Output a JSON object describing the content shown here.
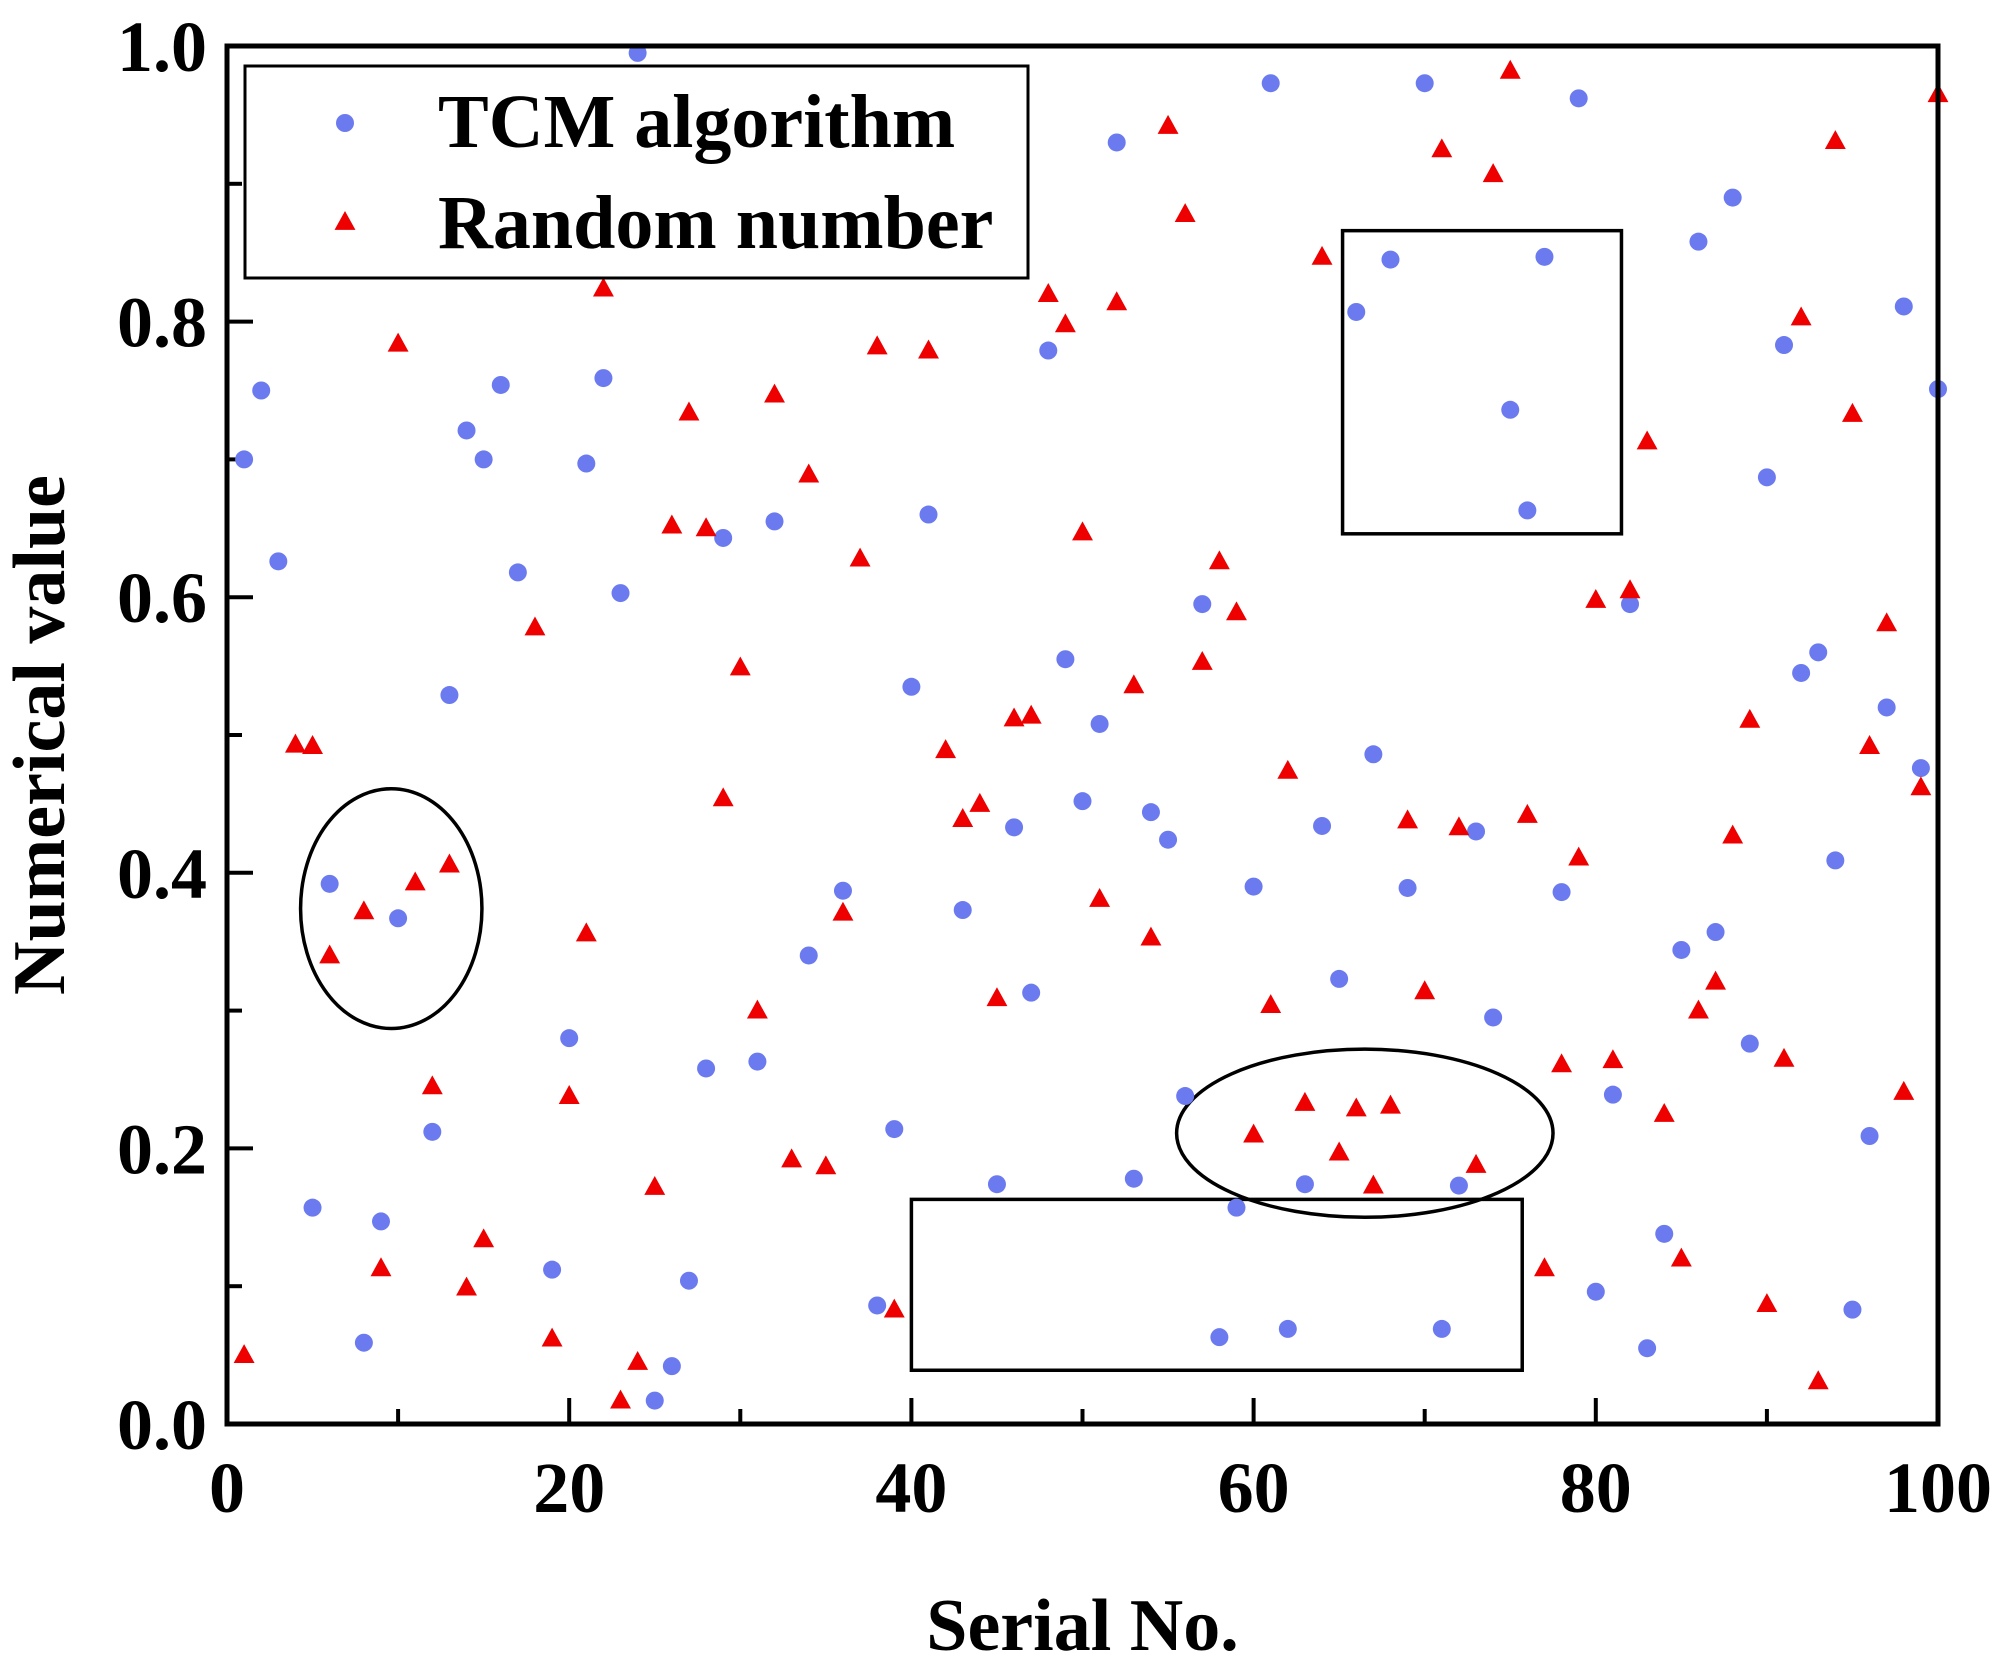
{
  "chart_data": {
    "type": "scatter",
    "title": "",
    "xlabel": "Serial No.",
    "ylabel": "Numerical value",
    "xlim": [
      0,
      100
    ],
    "ylim": [
      0,
      1.0
    ],
    "x_ticks": [
      0,
      20,
      40,
      60,
      80,
      100
    ],
    "x_tick_labels": [
      "0",
      "20",
      "40",
      "60",
      "80",
      "100"
    ],
    "y_ticks": [
      0.0,
      0.2,
      0.4,
      0.6,
      0.8,
      1.0
    ],
    "y_tick_labels": [
      "0.0",
      "0.2",
      "0.4",
      "0.6",
      "0.8",
      "1.0"
    ],
    "grid": false,
    "legend_position": "top-left",
    "series": [
      {
        "name": "TCM algorithm",
        "marker": "circle",
        "color": "#6B7BEF",
        "points": [
          [
            1,
            0.7
          ],
          [
            2,
            0.75
          ],
          [
            3,
            0.626
          ],
          [
            5,
            0.157
          ],
          [
            6,
            0.392
          ],
          [
            8,
            0.059
          ],
          [
            9,
            0.147
          ],
          [
            10,
            0.367
          ],
          [
            12,
            0.212
          ],
          [
            13,
            0.529
          ],
          [
            14,
            0.721
          ],
          [
            15,
            0.7
          ],
          [
            16,
            0.754
          ],
          [
            17,
            0.618
          ],
          [
            19,
            0.112
          ],
          [
            20,
            0.28
          ],
          [
            21,
            0.697
          ],
          [
            22,
            0.759
          ],
          [
            23,
            0.603
          ],
          [
            24,
            0.995
          ],
          [
            25,
            0.017
          ],
          [
            26,
            0.042
          ],
          [
            27,
            0.104
          ],
          [
            28,
            0.258
          ],
          [
            29,
            0.643
          ],
          [
            31,
            0.263
          ],
          [
            32,
            0.655
          ],
          [
            34,
            0.34
          ],
          [
            36,
            0.387
          ],
          [
            38,
            0.086
          ],
          [
            39,
            0.214
          ],
          [
            40,
            0.535
          ],
          [
            41,
            0.66
          ],
          [
            43,
            0.373
          ],
          [
            45,
            0.174
          ],
          [
            46,
            0.433
          ],
          [
            47,
            0.313
          ],
          [
            48,
            0.779
          ],
          [
            49,
            0.555
          ],
          [
            50,
            0.452
          ],
          [
            51,
            0.508
          ],
          [
            52,
            0.93
          ],
          [
            53,
            0.178
          ],
          [
            54,
            0.444
          ],
          [
            55,
            0.424
          ],
          [
            56,
            0.238
          ],
          [
            57,
            0.595
          ],
          [
            58,
            0.063
          ],
          [
            59,
            0.157
          ],
          [
            60,
            0.39
          ],
          [
            61,
            0.973
          ],
          [
            62,
            0.069
          ],
          [
            63,
            0.174
          ],
          [
            64,
            0.434
          ],
          [
            65,
            0.323
          ],
          [
            66,
            0.807
          ],
          [
            67,
            0.486
          ],
          [
            68,
            0.845
          ],
          [
            69,
            0.389
          ],
          [
            70,
            0.973
          ],
          [
            71,
            0.069
          ],
          [
            72,
            0.173
          ],
          [
            73,
            0.43
          ],
          [
            74,
            0.295
          ],
          [
            75,
            0.736
          ],
          [
            76,
            0.663
          ],
          [
            77,
            0.847
          ],
          [
            78,
            0.386
          ],
          [
            79,
            0.962
          ],
          [
            80,
            0.096
          ],
          [
            81,
            0.239
          ],
          [
            82,
            0.595
          ],
          [
            83,
            0.055
          ],
          [
            84,
            0.138
          ],
          [
            85,
            0.344
          ],
          [
            86,
            0.858
          ],
          [
            87,
            0.357
          ],
          [
            88,
            0.89
          ],
          [
            89,
            0.276
          ],
          [
            90,
            0.687
          ],
          [
            91,
            0.783
          ],
          [
            92,
            0.545
          ],
          [
            93,
            0.56
          ],
          [
            94,
            0.409
          ],
          [
            95,
            0.083
          ],
          [
            96,
            0.209
          ],
          [
            97,
            0.52
          ],
          [
            98,
            0.811
          ],
          [
            99,
            0.476
          ],
          [
            100,
            0.751
          ]
        ]
      },
      {
        "name": "Random number",
        "marker": "triangle",
        "color": "#EE0000",
        "points": [
          [
            1,
            0.05
          ],
          [
            4,
            0.493
          ],
          [
            5,
            0.492
          ],
          [
            6,
            0.34
          ],
          [
            8,
            0.372
          ],
          [
            9,
            0.113
          ],
          [
            10,
            0.784
          ],
          [
            11,
            0.393
          ],
          [
            12,
            0.245
          ],
          [
            13,
            0.406
          ],
          [
            14,
            0.099
          ],
          [
            15,
            0.134
          ],
          [
            18,
            0.578
          ],
          [
            19,
            0.062
          ],
          [
            20,
            0.238
          ],
          [
            21,
            0.356
          ],
          [
            22,
            0.824
          ],
          [
            23,
            0.017
          ],
          [
            24,
            0.045
          ],
          [
            25,
            0.172
          ],
          [
            26,
            0.652
          ],
          [
            27,
            0.734
          ],
          [
            28,
            0.65
          ],
          [
            29,
            0.454
          ],
          [
            30,
            0.549
          ],
          [
            31,
            0.3
          ],
          [
            32,
            0.747
          ],
          [
            33,
            0.192
          ],
          [
            34,
            0.689
          ],
          [
            35,
            0.187
          ],
          [
            36,
            0.371
          ],
          [
            37,
            0.628
          ],
          [
            38,
            0.782
          ],
          [
            39,
            0.083
          ],
          [
            41,
            0.779
          ],
          [
            42,
            0.489
          ],
          [
            43,
            0.439
          ],
          [
            44,
            0.45
          ],
          [
            45,
            0.309
          ],
          [
            46,
            0.512
          ],
          [
            47,
            0.514
          ],
          [
            48,
            0.82
          ],
          [
            49,
            0.798
          ],
          [
            50,
            0.647
          ],
          [
            51,
            0.381
          ],
          [
            52,
            0.814
          ],
          [
            53,
            0.536
          ],
          [
            54,
            0.353
          ],
          [
            55,
            0.942
          ],
          [
            56,
            0.878
          ],
          [
            57,
            0.553
          ],
          [
            58,
            0.626
          ],
          [
            59,
            0.589
          ],
          [
            60,
            0.21
          ],
          [
            61,
            0.304
          ],
          [
            62,
            0.474
          ],
          [
            63,
            0.233
          ],
          [
            64,
            0.847
          ],
          [
            65,
            0.197
          ],
          [
            66,
            0.229
          ],
          [
            67,
            0.173
          ],
          [
            68,
            0.231
          ],
          [
            69,
            0.438
          ],
          [
            70,
            0.314
          ],
          [
            71,
            0.925
          ],
          [
            72,
            0.433
          ],
          [
            73,
            0.188
          ],
          [
            74,
            0.907
          ],
          [
            75,
            0.982
          ],
          [
            76,
            0.442
          ],
          [
            77,
            0.113
          ],
          [
            78,
            0.261
          ],
          [
            79,
            0.411
          ],
          [
            80,
            0.598
          ],
          [
            81,
            0.264
          ],
          [
            82,
            0.605
          ],
          [
            83,
            0.713
          ],
          [
            84,
            0.225
          ],
          [
            85,
            0.12
          ],
          [
            86,
            0.3
          ],
          [
            87,
            0.321
          ],
          [
            88,
            0.427
          ],
          [
            89,
            0.511
          ],
          [
            90,
            0.087
          ],
          [
            91,
            0.265
          ],
          [
            92,
            0.803
          ],
          [
            93,
            0.031
          ],
          [
            94,
            0.931
          ],
          [
            95,
            0.733
          ],
          [
            96,
            0.492
          ],
          [
            97,
            0.581
          ],
          [
            98,
            0.241
          ],
          [
            99,
            0.462
          ],
          [
            100,
            0.965
          ]
        ]
      }
    ],
    "annotations": [
      {
        "shape": "ellipse",
        "x_range": [
          4.3,
          14.9
        ],
        "y_range": [
          0.287,
          0.461
        ]
      },
      {
        "shape": "ellipse",
        "x_range": [
          55.5,
          77.5
        ],
        "y_range": [
          0.15,
          0.272
        ]
      },
      {
        "shape": "rectangle",
        "x_range": [
          65.2,
          81.5
        ],
        "y_range": [
          0.646,
          0.866
        ]
      },
      {
        "shape": "rectangle",
        "x_range": [
          40.0,
          75.7
        ],
        "y_range": [
          0.039,
          0.163
        ]
      }
    ]
  }
}
